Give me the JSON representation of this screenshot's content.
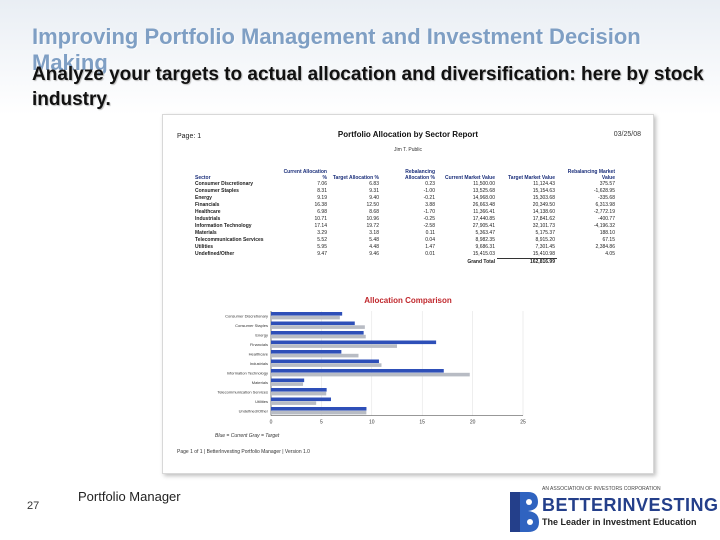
{
  "slide": {
    "title": "Improving Portfolio Management and Investment Decision Making",
    "subtitle": "Analyze your targets to actual allocation and diversification: here by stock industry.",
    "page_number": "27",
    "footer_label": "Portfolio Manager"
  },
  "logo": {
    "association": "AN ASSOCIATION OF INVESTORS CORPORATION",
    "brand": "BETTERINVESTING",
    "tagline": "The Leader in Investment Education",
    "colors": {
      "blue": "#243f8a",
      "accent": "#2f63c0"
    }
  },
  "report": {
    "tag": "Page: 1",
    "title": "Portfolio Allocation by Sector Report",
    "date": "03/25/08",
    "subheader": "Jim T. Public",
    "columns": [
      "Sector",
      "Current Allocation %",
      "Target Allocation %",
      "Rebalancing Allocation %",
      "Current Market Value",
      "Target Market Value",
      "Rebalancing Market Value"
    ],
    "rows": [
      [
        "Consumer Discretionary",
        "7.06",
        "6.83",
        "0.23",
        "11,500.00",
        "11,124.43",
        "375.57"
      ],
      [
        "Consumer Staples",
        "8.31",
        "9.31",
        "-1.00",
        "13,525.68",
        "15,154.63",
        "-1,628.95"
      ],
      [
        "Energy",
        "9.19",
        "9.40",
        "-0.21",
        "14,968.00",
        "15,303.68",
        "-335.68"
      ],
      [
        "Financials",
        "16.38",
        "12.50",
        "3.88",
        "26,663.48",
        "20,349.50",
        "6,313.98"
      ],
      [
        "Healthcare",
        "6.98",
        "8.68",
        "-1.70",
        "11,366.41",
        "14,138.60",
        "-2,772.19"
      ],
      [
        "Industrials",
        "10.71",
        "10.96",
        "-0.25",
        "17,440.85",
        "17,841.62",
        "-400.77"
      ],
      [
        "Information Technology",
        "17.14",
        "19.72",
        "-2.58",
        "27,905.41",
        "32,101.73",
        "-4,196.32"
      ],
      [
        "Materials",
        "3.29",
        "3.18",
        "0.11",
        "5,363.47",
        "5,175.37",
        "188.10"
      ],
      [
        "Telecommunication Services",
        "5.52",
        "5.48",
        "0.04",
        "8,982.35",
        "8,915.20",
        "67.15"
      ],
      [
        "Utilities",
        "5.95",
        "4.48",
        "1.47",
        "9,686.31",
        "7,301.45",
        "2,384.86"
      ],
      [
        "Undefined/Other",
        "9.47",
        "9.46",
        "0.01",
        "15,415.03",
        "15,410.98",
        "4.05"
      ]
    ],
    "grand_total_label": "Grand Total",
    "grand_total_value": "162,816.99"
  },
  "chart_data": {
    "type": "bar",
    "title": "Allocation Comparison",
    "orientation": "horizontal",
    "categories": [
      "Consumer Discretionary",
      "Consumer Staples",
      "Energy",
      "Financials",
      "Healthcare",
      "Industrials",
      "Information Technology",
      "Materials",
      "Telecommunication Services",
      "Utilities",
      "Undefined/Other"
    ],
    "series": [
      {
        "name": "Current",
        "color": "#2e4fb8",
        "values": [
          7.06,
          8.31,
          9.19,
          16.38,
          6.98,
          10.71,
          17.14,
          3.29,
          5.52,
          5.95,
          9.47
        ]
      },
      {
        "name": "Target",
        "color": "#b8bcc4",
        "values": [
          6.83,
          9.31,
          9.4,
          12.5,
          8.68,
          10.96,
          19.72,
          3.18,
          5.48,
          4.48,
          9.46
        ]
      }
    ],
    "xlim": [
      0,
      25
    ],
    "xticks": [
      "0",
      "5",
      "10",
      "15",
      "20",
      "25"
    ],
    "legend_text": "Blue = Current   Gray = Target",
    "footnote": "Page 1 of 1 | BetterInvesting Portfolio Manager | Version 1.0"
  }
}
